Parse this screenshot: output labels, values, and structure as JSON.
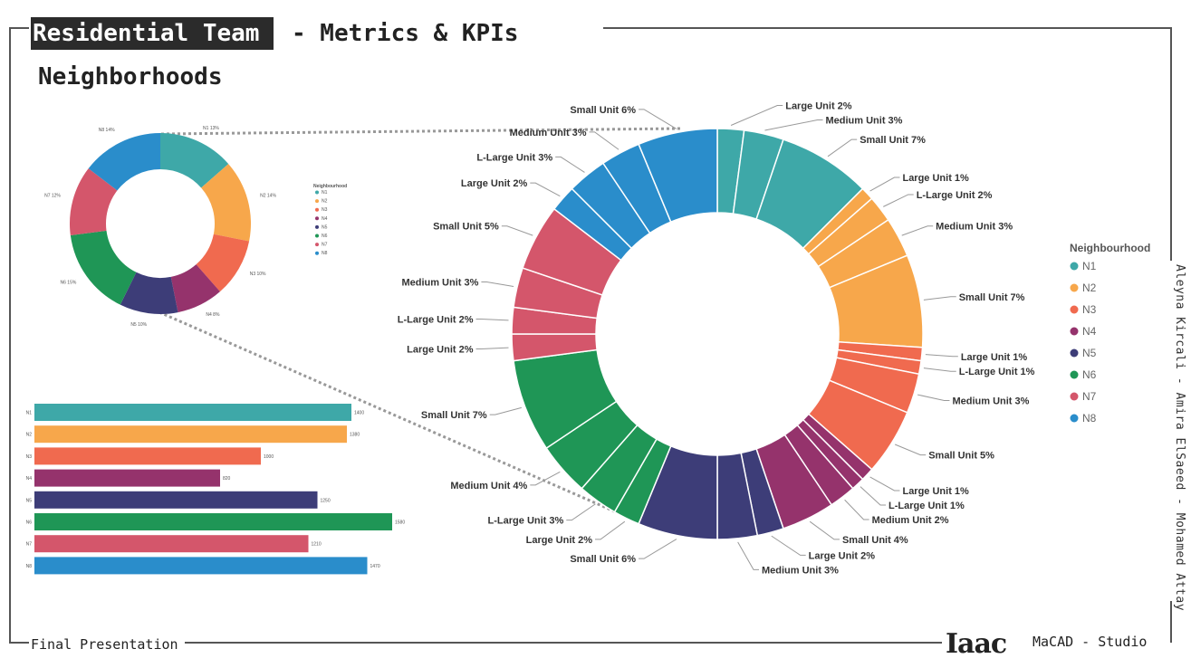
{
  "header": {
    "team": "Residential Team",
    "rest": "- Metrics & KPIs",
    "subtitle": "Neighborhoods"
  },
  "footer": {
    "left": "Final Presentation",
    "logo": "Iaac",
    "right": "MaCAD - Studio"
  },
  "authors": "Aleyna Kircali - Amira ElSaeed - Mohamed Attay",
  "colors": {
    "N1": "#3ea8a8",
    "N2": "#f7a74b",
    "N3": "#f06a4f",
    "N4": "#95336c",
    "N5": "#3d3d78",
    "N6": "#1f9656",
    "N7": "#d4566b",
    "N8": "#2a8dcb",
    "frame": "#555555",
    "badge": "#2b2b2b"
  },
  "chart_data": [
    {
      "type": "pie",
      "variant": "donut",
      "legend_title": "Neighbourhood",
      "legend_position": "right",
      "categories": [
        "N1",
        "N2",
        "N3",
        "N4",
        "N5",
        "N6",
        "N7",
        "N8"
      ],
      "values": [
        13,
        14,
        10,
        8,
        10,
        15,
        12,
        14
      ],
      "slice_labels": [
        "N1 13%",
        "N2 14%",
        "N3 10%",
        "N4 8%",
        "N5 10%",
        "N6 15%",
        "N7 12%",
        "N8 14%"
      ]
    },
    {
      "type": "pie",
      "variant": "donut",
      "legend_title": "Neighbourhood",
      "legend_position": "right",
      "segments": [
        {
          "group": "N1",
          "label": "Large Unit 2%",
          "value": 2
        },
        {
          "group": "N1",
          "label": "Medium Unit 3%",
          "value": 3
        },
        {
          "group": "N1",
          "label": "Small Unit 7%",
          "value": 7
        },
        {
          "group": "N2",
          "label": "Large Unit 1%",
          "value": 1
        },
        {
          "group": "N2",
          "label": "L-Large Unit 2%",
          "value": 2
        },
        {
          "group": "N2",
          "label": "Medium Unit 3%",
          "value": 3
        },
        {
          "group": "N2",
          "label": "Small Unit 7%",
          "value": 7
        },
        {
          "group": "N3",
          "label": "Large Unit 1%",
          "value": 1
        },
        {
          "group": "N3",
          "label": "L-Large Unit 1%",
          "value": 1
        },
        {
          "group": "N3",
          "label": "Medium Unit 3%",
          "value": 3
        },
        {
          "group": "N3",
          "label": "Small Unit 5%",
          "value": 5
        },
        {
          "group": "N4",
          "label": "Large Unit 1%",
          "value": 1
        },
        {
          "group": "N4",
          "label": "L-Large Unit 1%",
          "value": 1
        },
        {
          "group": "N4",
          "label": "Medium Unit 2%",
          "value": 2
        },
        {
          "group": "N4",
          "label": "Small Unit 4%",
          "value": 4
        },
        {
          "group": "N5",
          "label": "Large Unit 2%",
          "value": 2
        },
        {
          "group": "N5",
          "label": "Medium Unit 3%",
          "value": 3
        },
        {
          "group": "N5",
          "label": "Small Unit 6%",
          "value": 6
        },
        {
          "group": "N6",
          "label": "Large Unit 2%",
          "value": 2
        },
        {
          "group": "N6",
          "label": "L-Large Unit 3%",
          "value": 3
        },
        {
          "group": "N6",
          "label": "Medium Unit 4%",
          "value": 4
        },
        {
          "group": "N6",
          "label": "Small Unit 7%",
          "value": 7
        },
        {
          "group": "N7",
          "label": "Large Unit 2%",
          "value": 2
        },
        {
          "group": "N7",
          "label": "L-Large Unit 2%",
          "value": 2
        },
        {
          "group": "N7",
          "label": "Medium Unit 3%",
          "value": 3
        },
        {
          "group": "N7",
          "label": "Small Unit 5%",
          "value": 5
        },
        {
          "group": "N8",
          "label": "Large Unit 2%",
          "value": 2
        },
        {
          "group": "N8",
          "label": "L-Large Unit 3%",
          "value": 3
        },
        {
          "group": "N8",
          "label": "Medium Unit 3%",
          "value": 3
        },
        {
          "group": "N8",
          "label": "Small Unit 6%",
          "value": 6
        }
      ]
    },
    {
      "type": "bar",
      "orientation": "horizontal",
      "categories": [
        "N1",
        "N2",
        "N3",
        "N4",
        "N5",
        "N6",
        "N7",
        "N8"
      ],
      "values": [
        1400,
        1380,
        1000,
        820,
        1250,
        1580,
        1210,
        1470
      ],
      "xlim": [
        0,
        1600
      ]
    }
  ]
}
